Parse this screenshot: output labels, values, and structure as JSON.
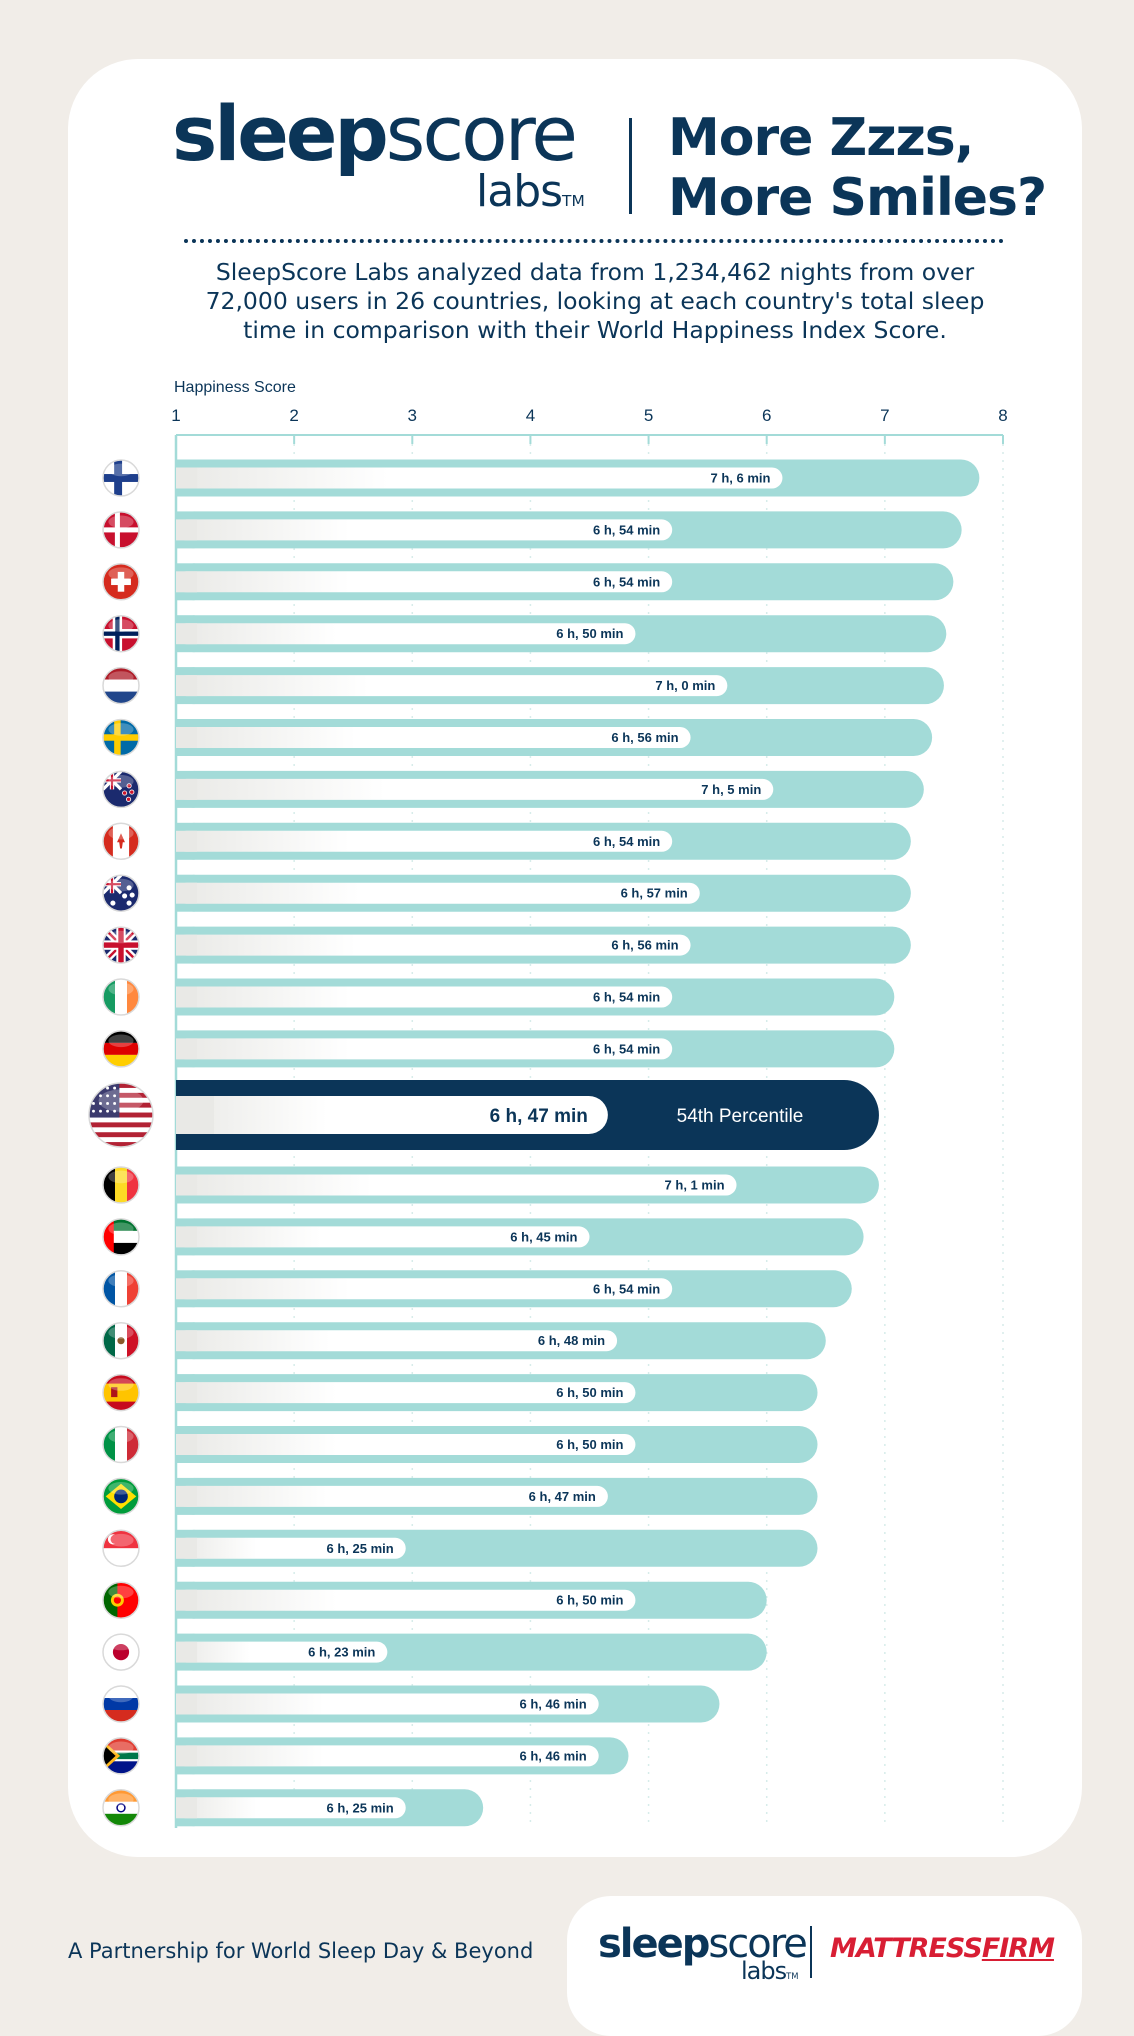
{
  "brand": {
    "logo_main_bold": "sleep",
    "logo_main_light": "score",
    "logo_sub": "labs",
    "logo_tm": "TM"
  },
  "headline": {
    "line1": "More Zzzs,",
    "line2": "More Smiles?"
  },
  "intro": "SleepScore Labs analyzed data from 1,234,462 nights from over 72,000 users in 26 countries, looking at each country's total sleep time in comparison with their World Happiness Index Score.",
  "chart_data": {
    "type": "bar",
    "orientation": "horizontal",
    "xlabel": "Happiness Score",
    "xlim": [
      1,
      8
    ],
    "x_ticks": [
      1,
      2,
      3,
      4,
      5,
      6,
      7,
      8
    ],
    "grid": true,
    "categories": [
      "finland-flag",
      "denmark-flag",
      "switzerland-flag",
      "norway-flag",
      "netherlands-flag",
      "sweden-flag",
      "new-zealand-flag",
      "canada-flag",
      "australia-flag",
      "united-kingdom-flag",
      "ireland-flag",
      "germany-flag",
      "united-states-flag",
      "belgium-flag",
      "uae-flag",
      "france-flag",
      "mexico-flag",
      "spain-flag",
      "italy-flag",
      "brazil-flag",
      "singapore-flag",
      "portugal-flag",
      "japan-flag",
      "russia-flag",
      "south-africa-flag",
      "india-flag"
    ],
    "series": [
      {
        "values": [
          7.8,
          7.65,
          7.58,
          7.52,
          7.5,
          7.4,
          7.33,
          7.22,
          7.22,
          7.22,
          7.08,
          7.08,
          6.95,
          6.95,
          6.82,
          6.72,
          6.5,
          6.43,
          6.43,
          6.43,
          6.43,
          6.0,
          6.0,
          5.6,
          4.83,
          3.6
        ],
        "sleep_labels": [
          "7 h, 6 min",
          "6 h, 54 min",
          "6 h, 54 min",
          "6 h, 50 min",
          "7 h, 0 min",
          "6 h, 56 min",
          "7 h, 5 min",
          "6 h, 54 min",
          "6 h, 57 min",
          "6 h, 56 min",
          "6 h, 54 min",
          "6 h, 54 min",
          "6 h, 47 min",
          "7 h, 1 min",
          "6 h, 45 min",
          "6 h, 54 min",
          "6 h, 48 min",
          "6 h, 50 min",
          "6 h, 50 min",
          "6 h, 47 min",
          "6 h, 25 min",
          "6 h, 50 min",
          "6 h, 23 min",
          "6 h, 46 min",
          "6 h, 46 min",
          "6 h, 25 min"
        ],
        "sleep_minutes": [
          426,
          414,
          414,
          410,
          420,
          416,
          425,
          414,
          417,
          416,
          414,
          414,
          407,
          421,
          405,
          414,
          408,
          410,
          410,
          407,
          385,
          410,
          383,
          406,
          406,
          385
        ]
      }
    ],
    "highlight": {
      "index": 12,
      "annotation": "54th Percentile"
    },
    "colors": {
      "bar": "#a3dbd8",
      "highlight": "#0b3558",
      "pill": "#ffffff",
      "text": "#0b3558"
    }
  },
  "footer": {
    "tagline": "A Partnership for World Sleep Day & Beyond",
    "partner_a": "mattress",
    "partner_b": "firm"
  }
}
